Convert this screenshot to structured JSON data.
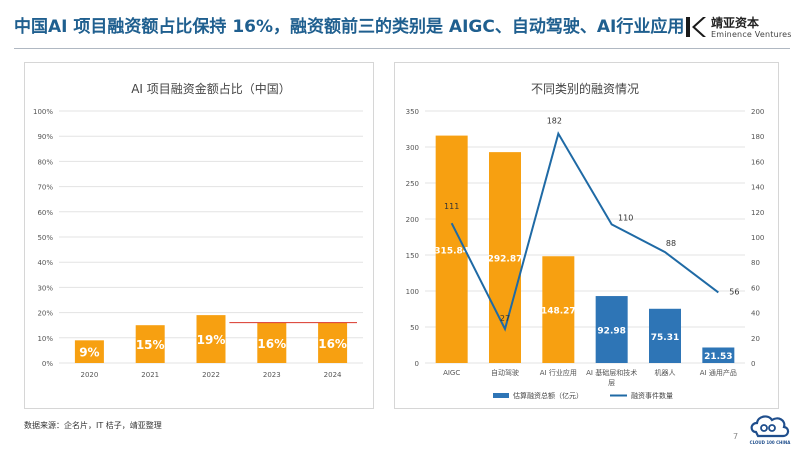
{
  "page": {
    "title": "中国AI 项目融资额占比保持 16%，融资额前三的类别是 AIGC、自动驾驶、AI行业应用",
    "source": "数据来源：企名片，IT 桔子，靖亚整理",
    "page_number": "7"
  },
  "logo": {
    "cn": "靖亚资本",
    "en": "Eminence Ventures"
  },
  "footer_logo": {
    "text": "CLOUD 100 CHINA"
  },
  "colors": {
    "title": "#1f5f8f",
    "orange": "#f7a011",
    "blue": "#2e75b6",
    "line": "#1f6aa5",
    "red": "#d9352a"
  },
  "chart_data": [
    {
      "type": "bar",
      "title": "AI 项目融资金额占比（中国）",
      "categories": [
        "2020",
        "2021",
        "2022",
        "2023",
        "2024"
      ],
      "values": [
        9,
        15,
        19,
        16,
        16
      ],
      "value_labels": [
        "9%",
        "15%",
        "19%",
        "16%",
        "16%"
      ],
      "ylim": [
        0,
        100
      ],
      "yticks": [
        "0%",
        "10%",
        "20%",
        "30%",
        "40%",
        "50%",
        "60%",
        "70%",
        "80%",
        "90%",
        "100%"
      ],
      "reference_line": 16,
      "grid": true
    },
    {
      "type": "bar",
      "title": "不同类别的融资情况",
      "categories": [
        "AIGC",
        "自动驾驶",
        "AI 行业应用",
        "AI 基础层和技术层",
        "机器人",
        "AI 通用产品"
      ],
      "series": [
        {
          "name": "估算融资总额（亿元）",
          "type": "bar",
          "axis": "left",
          "values": [
            315.84,
            292.87,
            148.27,
            92.98,
            75.31,
            21.53
          ],
          "value_labels": [
            "315.84",
            "292.87",
            "148.27",
            "92.98",
            "75.31",
            "21.53"
          ],
          "colors": [
            "#f7a011",
            "#f7a011",
            "#f7a011",
            "#2e75b6",
            "#2e75b6",
            "#2e75b6"
          ]
        },
        {
          "name": "融资事件数量",
          "type": "line",
          "axis": "right",
          "values": [
            111,
            27,
            182,
            110,
            88,
            56
          ],
          "value_labels": [
            "111",
            "27",
            "182",
            "110",
            "88",
            "56"
          ]
        }
      ],
      "ylim_left": [
        0,
        350
      ],
      "yticks_left": [
        "0",
        "50",
        "100",
        "150",
        "200",
        "250",
        "300",
        "350"
      ],
      "ylim_right": [
        0,
        200
      ],
      "yticks_right": [
        "0",
        "20",
        "40",
        "60",
        "80",
        "100",
        "120",
        "140",
        "160",
        "180",
        "200"
      ],
      "legend_position": "bottom",
      "grid": true
    }
  ]
}
